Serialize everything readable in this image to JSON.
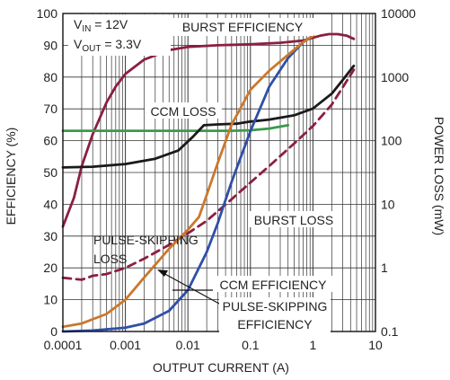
{
  "chart_data": {
    "type": "line",
    "xlabel": "OUTPUT CURRENT (A)",
    "ylabel": "EFFICIENCY (%)",
    "y2label": "POWER LOSS (mW)",
    "x_scale": "log",
    "xlim": [
      0.0001,
      10
    ],
    "ylim": [
      0,
      100
    ],
    "y2_scale": "log",
    "y2lim": [
      0.1,
      10000
    ],
    "grid": true,
    "x_ticks": [
      "0.0001",
      "0.001",
      "0.01",
      "0.1",
      "1",
      "10"
    ],
    "y_ticks": [
      "0",
      "10",
      "20",
      "30",
      "40",
      "50",
      "60",
      "70",
      "80",
      "90",
      "100"
    ],
    "y2_ticks": [
      "0.1",
      "1",
      "10",
      "100",
      "1000",
      "10000"
    ],
    "conditions": {
      "vin_label": "V",
      "vin_sub": "IN",
      "vin_value": " = 12V",
      "vout_label": "V",
      "vout_sub": "OUT",
      "vout_value": " = 3.3V"
    },
    "series": [
      {
        "key": "burst_eff",
        "name": "BURST EFFICIENCY",
        "color": "#8b1f3f",
        "dash": "solid",
        "axis": "left",
        "x": [
          0.0001,
          0.00015,
          0.0002,
          0.0003,
          0.0005,
          0.0007,
          0.001,
          0.002,
          0.005,
          0.01,
          0.03,
          0.1,
          0.3,
          0.7,
          1.3,
          1.8,
          2.5,
          3.5,
          4.5
        ],
        "y": [
          33,
          42,
          52,
          62,
          72,
          77,
          81,
          85.5,
          88.5,
          89.5,
          90,
          90.3,
          90.8,
          91.5,
          93,
          93.5,
          93.5,
          93,
          92
        ]
      },
      {
        "key": "ccm_loss",
        "name": "CCM LOSS",
        "color": "#3a9a4a",
        "dash": "solid",
        "axis": "right",
        "x": [
          0.0001,
          0.001,
          0.01,
          0.05,
          0.1,
          0.2,
          0.4
        ],
        "y": [
          143,
          143,
          143,
          143,
          146,
          155,
          175
        ]
      },
      {
        "key": "ps_loss",
        "name": "PULSE-SKIPPING LOSS",
        "color": "#1a1a1a",
        "dash": "solid",
        "axis": "right",
        "x": [
          0.0001,
          0.0003,
          0.001,
          0.003,
          0.007,
          0.012,
          0.018,
          0.03,
          0.06,
          0.1,
          0.2,
          0.5,
          1,
          2,
          3,
          4.5
        ],
        "y": [
          38,
          39,
          43,
          52,
          70,
          115,
          175,
          180,
          185,
          200,
          215,
          250,
          320,
          550,
          900,
          1500
        ]
      },
      {
        "key": "burst_loss",
        "name": "BURST LOSS",
        "color": "#8b1f3f",
        "dash": "dashed",
        "axis": "right",
        "x": [
          0.0001,
          0.0002,
          0.0003,
          0.0005,
          0.001,
          0.002,
          0.005,
          0.01,
          0.02,
          0.05,
          0.1,
          0.2,
          0.5,
          1,
          2,
          4.5
        ],
        "y": [
          0.7,
          0.65,
          0.75,
          0.8,
          1.0,
          1.4,
          2.3,
          3.5,
          5.5,
          12,
          22,
          40,
          90,
          170,
          370,
          1300
        ]
      },
      {
        "key": "ccm_eff",
        "name": "CCM EFFICIENCY",
        "color": "#2f4fa8",
        "dash": "solid",
        "axis": "left",
        "x": [
          0.0001,
          0.0003,
          0.001,
          0.002,
          0.005,
          0.01,
          0.02,
          0.03,
          0.05,
          0.1,
          0.2,
          0.4,
          0.7,
          1
        ],
        "y": [
          0,
          0.3,
          1.2,
          2.5,
          6.5,
          13,
          25,
          34,
          47,
          63,
          77,
          86,
          91,
          93
        ]
      },
      {
        "key": "ps_eff",
        "name": "PULSE-SKIPPING EFFICIENCY",
        "color": "#c9782d",
        "dash": "solid",
        "axis": "left",
        "x": [
          0.0001,
          0.0002,
          0.0005,
          0.001,
          0.002,
          0.005,
          0.01,
          0.015,
          0.02,
          0.03,
          0.05,
          0.1,
          0.2,
          0.4,
          0.7,
          1
        ],
        "y": [
          1.5,
          2.5,
          5.5,
          10,
          17,
          26,
          32,
          36,
          43,
          53,
          65,
          76,
          82,
          87,
          91,
          93
        ]
      }
    ],
    "annotations": [
      {
        "key": "burst_eff",
        "lines": [
          "BURST EFFICIENCY"
        ]
      },
      {
        "key": "ccm_loss",
        "lines": [
          "CCM LOSS"
        ]
      },
      {
        "key": "burst_loss",
        "lines": [
          "BURST LOSS"
        ]
      },
      {
        "key": "ps_loss",
        "lines": [
          "PULSE-SKIPPING",
          "LOSS"
        ]
      },
      {
        "key": "ccm_eff",
        "lines": [
          "CCM EFFICIENCY"
        ]
      },
      {
        "key": "ps_eff",
        "lines": [
          "PULSE-SKIPPING",
          "EFFICIENCY"
        ]
      }
    ]
  }
}
